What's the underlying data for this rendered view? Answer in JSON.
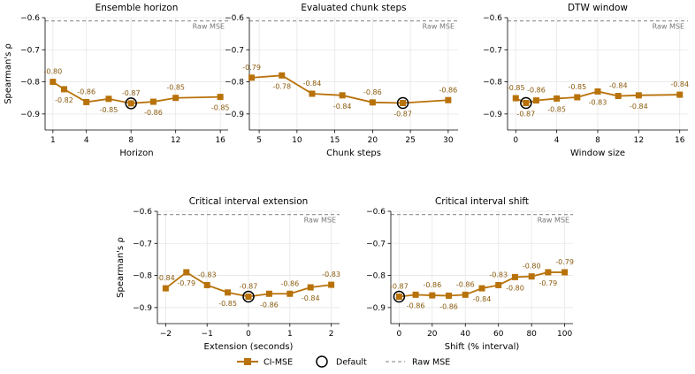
{
  "colors": {
    "series": "#b8720a",
    "reference": "#999999",
    "default_marker": "#000000"
  },
  "legend": [
    {
      "key": "series",
      "label": "CI-MSE"
    },
    {
      "key": "default",
      "label": "Default"
    },
    {
      "key": "reference",
      "label": "Raw MSE"
    }
  ],
  "chart_data": [
    {
      "type": "line",
      "title": "Ensemble horizon",
      "xlabel": "Horizon",
      "ylabel": "Spearman's ρ",
      "xlim": [
        0.3,
        16.7
      ],
      "ylim": [
        -0.95,
        -0.6
      ],
      "xticks": [
        1,
        4,
        8,
        12,
        16
      ],
      "yticks": [
        -0.6,
        -0.7,
        -0.8,
        -0.9
      ],
      "ytick_labels": [
        "−0.6",
        "−0.7",
        "−0.8",
        "−0.9"
      ],
      "reference": {
        "label": "Raw MSE",
        "y": -0.61
      },
      "default_index": 4,
      "series": [
        {
          "name": "CI-MSE",
          "x": [
            1,
            2,
            4,
            6,
            8,
            10,
            12,
            16
          ],
          "y": [
            -0.8,
            -0.823,
            -0.863,
            -0.853,
            -0.867,
            -0.862,
            -0.85,
            -0.847
          ],
          "labels": [
            "-0.80",
            "-0.82",
            "-0.86",
            "-0.85",
            "-0.87",
            "-0.86",
            "-0.85",
            "-0.85"
          ],
          "label_pos": [
            "above",
            "below",
            "above",
            "below",
            "above",
            "below",
            "above",
            "below"
          ]
        }
      ]
    },
    {
      "type": "line",
      "title": "Evaluated chunk steps",
      "xlabel": "Chunk steps",
      "ylabel": "",
      "xlim": [
        3.7,
        31.3
      ],
      "ylim": [
        -0.95,
        -0.6
      ],
      "xticks": [
        5,
        10,
        15,
        20,
        25,
        30
      ],
      "yticks": [
        -0.6,
        -0.7,
        -0.8,
        -0.9
      ],
      "ytick_labels": [
        "−0.6",
        "−0.7",
        "−0.8",
        "−0.9"
      ],
      "reference": {
        "label": "Raw MSE",
        "y": -0.61
      },
      "default_index": 5,
      "series": [
        {
          "name": "CI-MSE",
          "x": [
            4,
            8,
            12,
            16,
            20,
            24,
            30
          ],
          "y": [
            -0.787,
            -0.78,
            -0.837,
            -0.842,
            -0.864,
            -0.866,
            -0.857
          ],
          "labels": [
            "-0.79",
            "-0.78",
            "-0.84",
            "-0.84",
            "-0.86",
            "-0.87",
            "-0.86"
          ],
          "label_pos": [
            "above",
            "below",
            "above",
            "below",
            "above",
            "below",
            "above"
          ]
        }
      ]
    },
    {
      "type": "line",
      "title": "DTW window",
      "xlabel": "Window size",
      "ylabel": "",
      "xlim": [
        -0.8,
        16.8
      ],
      "ylim": [
        -0.95,
        -0.6
      ],
      "xticks": [
        0,
        4,
        8,
        12,
        16
      ],
      "yticks": [
        -0.6,
        -0.7,
        -0.8,
        -0.9
      ],
      "ytick_labels": [
        "−0.6",
        "−0.7",
        "−0.8",
        "−0.9"
      ],
      "reference": {
        "label": "Raw MSE",
        "y": -0.61
      },
      "default_index": 1,
      "series": [
        {
          "name": "CI-MSE",
          "x": [
            0,
            1,
            2,
            4,
            6,
            8,
            10,
            12,
            16
          ],
          "y": [
            -0.851,
            -0.866,
            -0.858,
            -0.852,
            -0.848,
            -0.83,
            -0.844,
            -0.842,
            -0.84
          ],
          "labels": [
            "-0.85",
            "-0.87",
            "-0.86",
            "-0.85",
            "-0.85",
            "-0.83",
            "-0.84",
            "-0.84",
            "-0.84"
          ],
          "label_pos": [
            "above",
            "below",
            "above",
            "below",
            "above",
            "below",
            "above",
            "below",
            "above"
          ]
        }
      ]
    },
    {
      "type": "line",
      "title": "Critical interval extension",
      "xlabel": "Extension (seconds)",
      "ylabel": "Spearman's ρ",
      "xlim": [
        -2.2,
        2.2
      ],
      "ylim": [
        -0.95,
        -0.6
      ],
      "xticks": [
        -2,
        -1,
        0,
        1,
        2
      ],
      "xtick_labels": [
        "−2",
        "−1",
        "0",
        "1",
        "2"
      ],
      "yticks": [
        -0.6,
        -0.7,
        -0.8,
        -0.9
      ],
      "ytick_labels": [
        "−0.6",
        "−0.7",
        "−0.8",
        "−0.9"
      ],
      "reference": {
        "label": "Raw MSE",
        "y": -0.61
      },
      "default_index": 4,
      "series": [
        {
          "name": "CI-MSE",
          "x": [
            -2,
            -1.5,
            -1,
            -0.5,
            0,
            0.5,
            1,
            1.5,
            2
          ],
          "y": [
            -0.84,
            -0.79,
            -0.83,
            -0.853,
            -0.866,
            -0.857,
            -0.857,
            -0.837,
            -0.829
          ],
          "labels": [
            "-0.84",
            "-0.79",
            "-0.83",
            "-0.85",
            "-0.87",
            "-0.86",
            "-0.86",
            "-0.84",
            "-0.83"
          ],
          "label_pos": [
            "above",
            "below",
            "above",
            "below",
            "above",
            "below",
            "above",
            "below",
            "above"
          ]
        }
      ]
    },
    {
      "type": "line",
      "title": "Critical interval shift",
      "xlabel": "Shift (% interval)",
      "ylabel": "",
      "xlim": [
        -5,
        105
      ],
      "ylim": [
        -0.95,
        -0.6
      ],
      "xticks": [
        0,
        20,
        40,
        60,
        80,
        100
      ],
      "yticks": [
        -0.6,
        -0.7,
        -0.8,
        -0.9
      ],
      "ytick_labels": [
        "−0.6",
        "−0.7",
        "−0.8",
        "−0.9"
      ],
      "reference": {
        "label": "Raw MSE",
        "y": -0.61
      },
      "default_index": 0,
      "series": [
        {
          "name": "CI-MSE",
          "x": [
            0,
            10,
            20,
            30,
            40,
            50,
            60,
            70,
            80,
            90,
            100
          ],
          "y": [
            -0.866,
            -0.86,
            -0.862,
            -0.863,
            -0.86,
            -0.84,
            -0.83,
            -0.805,
            -0.803,
            -0.79,
            -0.79
          ],
          "labels": [
            "-0.87",
            "-0.86",
            "-0.86",
            "-0.86",
            "-0.86",
            "-0.84",
            "-0.83",
            "-0.80",
            "-0.80",
            "-0.79",
            "-0.79"
          ],
          "label_pos": [
            "above",
            "below",
            "above",
            "below",
            "above",
            "below",
            "above",
            "below",
            "above",
            "below",
            "above"
          ]
        }
      ]
    }
  ]
}
